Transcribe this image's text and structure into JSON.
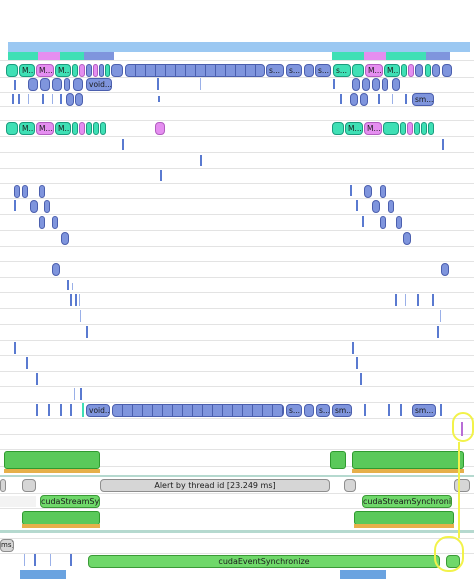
{
  "labels": {
    "m1": "M...",
    "m2": "M...",
    "m3": "M...",
    "void1": "void...",
    "s1": "s...",
    "s2": "s...",
    "s3": "s...",
    "s4": "s...",
    "m4": "M...",
    "m5": "M...",
    "sm1": "sm...",
    "m6": "M...",
    "m7": "M...",
    "m8": "M...",
    "m9": "M...",
    "m10": "M...",
    "void2": "void...",
    "s5": "s...",
    "s6": "s...",
    "sm2": "sm...",
    "sm3": "sm...",
    "alert": "Alert by thread id [23.249 ms]",
    "css1": "cudaStreamSy...",
    "css2": "cudaStreamSynchronize",
    "ces": "cudaEventSynchronize",
    "ms": "ms]"
  },
  "colors": {
    "kernel_blue": "#7f95dd",
    "memcpy_teal": "#3fe0b5",
    "memset_pink": "#e58ef0",
    "sync_green": "#6fd86a",
    "alert_gray": "#d6d6d6",
    "highlight_yellow": "#f2f24a"
  }
}
